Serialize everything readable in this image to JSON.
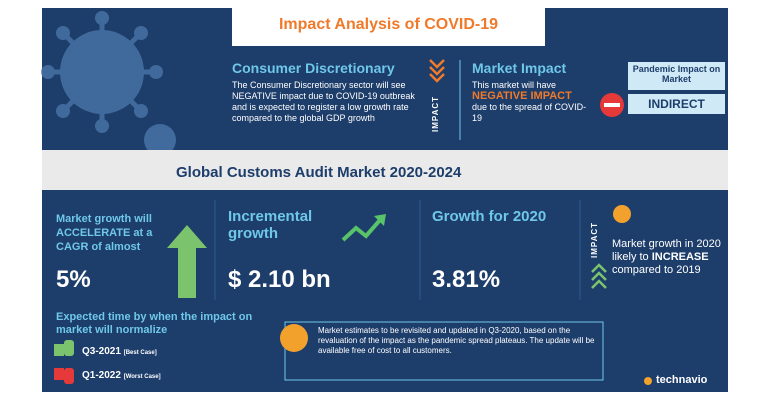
{
  "header": {
    "title": "Impact Analysis of COVID-19"
  },
  "sector": {
    "title": "Consumer Discretionary",
    "text": "The Consumer Discretionary sector will see NEGATIVE impact due to COVID-19 outbreak and is expected to register a low growth rate compared to the global GDP growth",
    "impact_label": "IMPACT"
  },
  "market_impact": {
    "title": "Market Impact",
    "text_before": "This market will have",
    "highlight": "NEGATIVE IMPACT",
    "text_after": "due to the spread of COVID-19"
  },
  "pandemic_impact": {
    "title": "Pandemic Impact on Market",
    "value": "INDIRECT"
  },
  "market_title": "Global Customs Audit Market 2020-2024",
  "metrics": [
    {
      "label": "Market growth will ACCELERATE at a CAGR of almost",
      "value": "5%"
    },
    {
      "label": "Incremental growth",
      "value": "$ 2.10 bn"
    },
    {
      "label": "Growth for 2020",
      "value": "3.81%"
    }
  ],
  "growth_2020": {
    "impact_label": "IMPACT",
    "text_before": "Market growth in 2020 likely to",
    "highlight": "INCREASE",
    "text_after": "compared to 2019"
  },
  "normalize": {
    "title": "Expected time by when the impact on market will normalize",
    "best": {
      "quarter": "Q3-2021",
      "case": "[Best Case]"
    },
    "worst": {
      "quarter": "Q1-2022",
      "case": "[Worst Case]"
    }
  },
  "note": "Market estimates to be revisited and updated in Q3-2020, based on the revaluation of the impact as the pandemic spread plateaus. The update will be available free of cost to all customers.",
  "logo": "technavio"
}
